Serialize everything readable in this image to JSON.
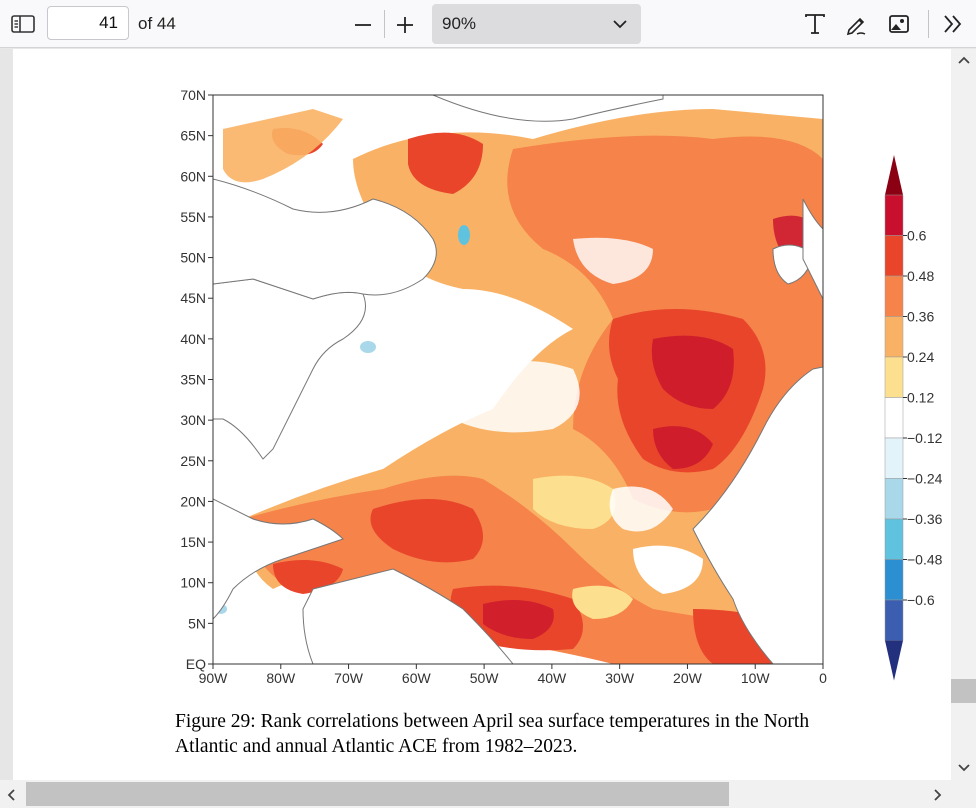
{
  "toolbar": {
    "sidebar_icon": "sidebar-toggle-icon",
    "page_number": "41",
    "page_count_label": "of 44",
    "zoom_out_icon": "minus-icon",
    "zoom_in_icon": "plus-icon",
    "zoom_value": "90%",
    "text_icon": "text-tool-icon",
    "draw_icon": "pen-icon",
    "image_icon": "image-icon",
    "more_icon": "double-chevron-right-icon"
  },
  "figure": {
    "caption_line1": "Figure 29: Rank correlations between April sea surface temperatures in the North",
    "caption_line2": "Atlantic and annual Atlantic ACE from 1982–2023.",
    "lat_labels": [
      "70N",
      "65N",
      "60N",
      "55N",
      "50N",
      "45N",
      "40N",
      "35N",
      "30N",
      "25N",
      "20N",
      "15N",
      "10N",
      "5N",
      "EQ"
    ],
    "lon_labels": [
      "90W",
      "80W",
      "70W",
      "60W",
      "50W",
      "40W",
      "30W",
      "20W",
      "10W",
      "0"
    ],
    "colorbar_labels": [
      "0.6",
      "0.48",
      "0.36",
      "0.24",
      "0.12",
      "−0.12",
      "−0.24",
      "−0.36",
      "−0.48",
      "−0.6"
    ],
    "colorbar_colors": [
      "#c8102e",
      "#e8452b",
      "#f5834a",
      "#f9b265",
      "#fde08f",
      "#ffffff",
      "#e2f3fa",
      "#a9d8ea",
      "#5fc3e0",
      "#2b8fd1",
      "#3b5eb0"
    ],
    "colorbar_tips": {
      "top": "#8b0013",
      "bottom": "#23307e"
    }
  }
}
